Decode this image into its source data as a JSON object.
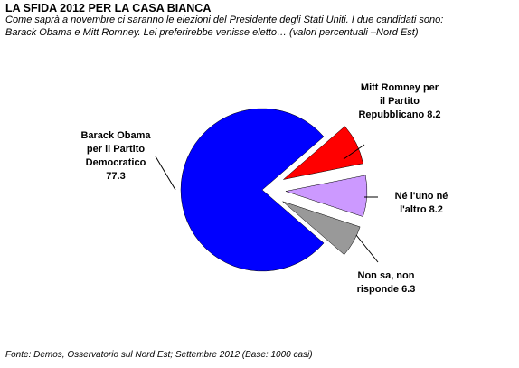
{
  "title": "LA SFIDA 2012 PER LA CASA BIANCA",
  "subtitle_lines": [
    "Come saprà a novembre ci saranno le elezioni del Presidente degli Stati Uniti. I due candidati sono:",
    "Barack Obama e Mitt Romney. Lei preferirebbe venisse eletto…  (valori percentuali –Nord Est)"
  ],
  "footer": "Fonte: Demos, Osservatorio sul Nord Est; Settembre 2012 (Base: 1000 casi)",
  "chart_data": {
    "type": "pie",
    "title": "LA SFIDA 2012 PER LA CASA BIANCA",
    "slices": [
      {
        "label_lines": [
          "Barack Obama",
          "per il Partito",
          "Democratico",
          "77.3"
        ],
        "value": 77.3,
        "color": "#0000ff"
      },
      {
        "label_lines": [
          "Mitt Romney per",
          "il Partito",
          "Repubblicano 8.2"
        ],
        "value": 8.2,
        "color": "#ff0000"
      },
      {
        "label_lines": [
          "Né l'uno né",
          "l'altro 8.2"
        ],
        "value": 8.2,
        "color": "#cc99ff"
      },
      {
        "label_lines": [
          "Non sa, non",
          "risponde 6.3"
        ],
        "value": 6.3,
        "color": "#999999"
      }
    ],
    "exploded": true
  }
}
